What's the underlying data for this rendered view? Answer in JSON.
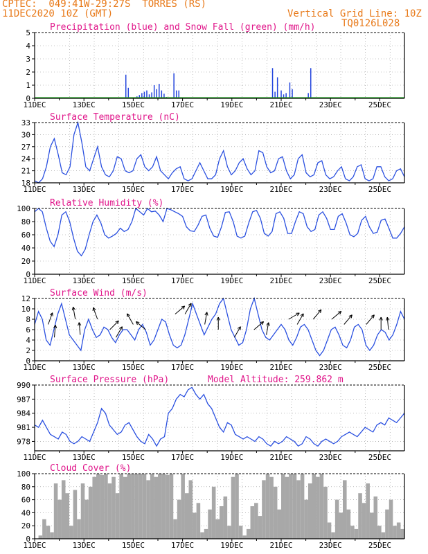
{
  "header": {
    "line1": "CPTEC:  049:41W-29:27S  TORRES (RS)",
    "line2": "11DEC2020 10Z (GMT)",
    "grid_note": "Vertical Grid Line: 10Z",
    "code": "TQ0126L028",
    "model_altitude": "Model Altitude: 259.862 m"
  },
  "colors": {
    "header": "#e87a1a",
    "title": "#e0168a",
    "precip": "#2244dd",
    "snow": "#22aa22",
    "line": "#2a50e0",
    "cloud": "#a8a8a8",
    "wind_arrow": "#000000"
  },
  "x_tick_labels": [
    "11DEC",
    "13DEC",
    "15DEC",
    "17DEC",
    "19DEC",
    "21DEC",
    "23DEC",
    "25DEC"
  ],
  "chart_data": [
    {
      "id": "precip",
      "type": "bar",
      "title": "Precipitation (blue) and Snow Fall (green) (mm/h)",
      "ylim": [
        0,
        5
      ],
      "yticks": [
        "0",
        "1",
        "2",
        "3",
        "4",
        "5"
      ],
      "x_unit": "days since 11DEC 00Z",
      "series": [
        {
          "name": "Precipitation",
          "points": [
            [
              3.7,
              1.8
            ],
            [
              3.8,
              0.8
            ],
            [
              4.15,
              0.15
            ],
            [
              4.25,
              0.25
            ],
            [
              4.35,
              0.4
            ],
            [
              4.45,
              0.5
            ],
            [
              4.55,
              0.6
            ],
            [
              4.65,
              0.3
            ],
            [
              4.75,
              0.45
            ],
            [
              4.85,
              1.0
            ],
            [
              4.95,
              0.7
            ],
            [
              5.05,
              1.1
            ],
            [
              5.15,
              0.6
            ],
            [
              5.25,
              0.35
            ],
            [
              5.35,
              0.1
            ],
            [
              5.65,
              1.9
            ],
            [
              5.75,
              0.6
            ],
            [
              5.85,
              0.6
            ],
            [
              9.65,
              2.3
            ],
            [
              9.75,
              0.5
            ],
            [
              9.85,
              1.6
            ],
            [
              10.0,
              0.6
            ],
            [
              10.1,
              0.3
            ],
            [
              10.2,
              0.4
            ],
            [
              10.35,
              1.2
            ],
            [
              10.45,
              0.7
            ],
            [
              11.1,
              0.4
            ],
            [
              11.2,
              2.3
            ]
          ]
        },
        {
          "name": "Snow Fall",
          "points": []
        }
      ]
    },
    {
      "id": "temperature",
      "type": "line",
      "title": "Surface Temperature (nC)",
      "ylim": [
        18,
        33
      ],
      "yticks": [
        "18",
        "21",
        "24",
        "27",
        "30",
        "33"
      ],
      "y": [
        18.5,
        18,
        19,
        22,
        27,
        29,
        25,
        20.5,
        20,
        22,
        30,
        33,
        28,
        22,
        21,
        24,
        27,
        22,
        20,
        19.5,
        21,
        24.5,
        24,
        21,
        20.5,
        21,
        24,
        25,
        22,
        21,
        22,
        24.5,
        21,
        20,
        19,
        20.5,
        21.5,
        22,
        19,
        18.5,
        19,
        21,
        23,
        21,
        19,
        19,
        20,
        24,
        26,
        22,
        20,
        21,
        23,
        24,
        21.5,
        20,
        21,
        26,
        25.5,
        22,
        20.5,
        21,
        24,
        24.5,
        21,
        19,
        20,
        24,
        25,
        20.5,
        19.5,
        20,
        23,
        23.5,
        20,
        19,
        19.5,
        21,
        22,
        19,
        18.5,
        19.5,
        22,
        22.5,
        19,
        18.5,
        19,
        22,
        22,
        19.5,
        18.5,
        19,
        21,
        21.5,
        19.5
      ]
    },
    {
      "id": "humidity",
      "type": "line",
      "title": "Relative Humidity (%)",
      "ylim": [
        0,
        100
      ],
      "yticks": [
        "0",
        "20",
        "40",
        "60",
        "80",
        "100"
      ],
      "y": [
        95,
        100,
        95,
        70,
        50,
        42,
        60,
        90,
        95,
        80,
        55,
        35,
        28,
        38,
        60,
        80,
        90,
        78,
        60,
        55,
        58,
        62,
        70,
        65,
        68,
        80,
        100,
        95,
        90,
        100,
        95,
        96,
        90,
        80,
        100,
        98,
        95,
        92,
        88,
        72,
        66,
        65,
        75,
        88,
        90,
        70,
        58,
        56,
        72,
        94,
        95,
        80,
        58,
        55,
        58,
        78,
        95,
        97,
        85,
        62,
        58,
        65,
        92,
        95,
        85,
        62,
        62,
        80,
        95,
        92,
        72,
        65,
        68,
        90,
        95,
        85,
        68,
        68,
        88,
        92,
        78,
        60,
        57,
        62,
        82,
        88,
        72,
        62,
        64,
        82,
        84,
        70,
        55,
        55,
        62,
        72
      ]
    },
    {
      "id": "wind",
      "type": "line",
      "title": "Surface Wind (m/s)",
      "ylim": [
        0,
        12
      ],
      "yticks": [
        "0",
        "2",
        "4",
        "6",
        "8",
        "10",
        "12"
      ],
      "y": [
        7,
        9.5,
        8,
        4,
        3,
        6,
        9,
        11,
        8,
        5,
        4,
        3,
        2,
        6,
        8,
        6,
        4.5,
        5,
        6.5,
        6,
        4.5,
        3.5,
        5,
        6,
        6,
        5,
        4,
        6,
        7,
        5.5,
        3,
        4,
        6,
        8,
        7.5,
        5,
        3,
        2.5,
        3,
        5,
        8,
        11,
        9,
        7,
        5,
        6.5,
        8,
        9,
        11,
        12,
        9,
        6,
        4.5,
        3,
        3.5,
        6,
        10,
        12,
        9,
        6,
        4.5,
        4,
        5,
        6,
        7,
        6,
        4,
        3,
        4.5,
        6.5,
        7,
        6,
        4,
        2,
        1,
        2,
        4,
        6,
        6.5,
        5,
        3,
        2.5,
        4,
        6.5,
        7,
        6,
        3,
        2,
        3,
        5,
        6,
        5.5,
        4,
        5,
        7,
        9.5,
        8
      ]
    },
    {
      "id": "pressure",
      "type": "line",
      "title": "Surface Pressure (hPa)",
      "ylim": [
        976,
        990
      ],
      "yticks": [
        "978",
        "981",
        "984",
        "987",
        "990"
      ],
      "y": [
        981.5,
        981,
        982.5,
        981,
        979.5,
        979,
        978.5,
        980,
        979.5,
        978,
        977.5,
        978,
        979,
        978.5,
        978,
        980,
        982,
        985,
        984,
        981.5,
        980.5,
        979.5,
        980,
        981.5,
        982,
        980.5,
        979,
        978,
        977.5,
        979.5,
        978.5,
        977,
        978.5,
        979,
        984,
        985,
        987,
        988,
        987.5,
        989,
        989.5,
        988,
        987,
        988,
        986,
        985,
        983,
        981,
        980,
        982,
        981.5,
        979.5,
        979,
        978.5,
        979,
        978.5,
        978,
        979,
        978.5,
        977.5,
        977,
        978,
        977.5,
        978,
        979,
        978.5,
        978,
        977,
        977.5,
        979,
        978.5,
        977.5,
        977,
        978,
        978.5,
        978,
        977.5,
        978,
        979,
        979.5,
        980,
        979.5,
        979,
        980,
        981,
        980.5,
        980,
        981.5,
        982,
        981.5,
        983,
        982.5,
        982,
        983,
        984
      ]
    },
    {
      "id": "cloud",
      "type": "area",
      "title": "Cloud Cover (%)",
      "ylim": [
        0,
        100
      ],
      "yticks": [
        "0",
        "20",
        "40",
        "60",
        "80",
        "100"
      ],
      "y": [
        0,
        5,
        30,
        20,
        10,
        85,
        60,
        90,
        70,
        20,
        75,
        30,
        85,
        60,
        80,
        95,
        100,
        98,
        100,
        85,
        95,
        70,
        100,
        95,
        100,
        100,
        100,
        100,
        100,
        90,
        100,
        95,
        100,
        100,
        98,
        100,
        30,
        60,
        100,
        70,
        90,
        40,
        55,
        10,
        15,
        45,
        80,
        30,
        50,
        65,
        20,
        95,
        100,
        20,
        5,
        15,
        50,
        55,
        35,
        90,
        100,
        95,
        80,
        45,
        100,
        95,
        100,
        100,
        90,
        100,
        60,
        85,
        100,
        95,
        100,
        80,
        25,
        10,
        60,
        40,
        90,
        45,
        20,
        15,
        70,
        55,
        85,
        40,
        65,
        20,
        10,
        45,
        60,
        20,
        25,
        15
      ]
    }
  ],
  "wind_barbs": [
    [
      0.55,
      7,
      70
    ],
    [
      0.8,
      4.5,
      85
    ],
    [
      1.65,
      8,
      100
    ],
    [
      1.85,
      5,
      95
    ],
    [
      2.55,
      8,
      110
    ],
    [
      3.05,
      6,
      45
    ],
    [
      3.3,
      4.5,
      60
    ],
    [
      4.0,
      7,
      120
    ],
    [
      4.5,
      6,
      140
    ],
    [
      5.7,
      9,
      40
    ],
    [
      6.1,
      9,
      60
    ],
    [
      6.9,
      7,
      80
    ],
    [
      7.45,
      6,
      90
    ],
    [
      8.1,
      4.5,
      60
    ],
    [
      8.9,
      6,
      40
    ],
    [
      9.4,
      5,
      80
    ],
    [
      10.3,
      8,
      30
    ],
    [
      10.65,
      7,
      60
    ],
    [
      11.3,
      8,
      50
    ],
    [
      12.05,
      8,
      40
    ],
    [
      12.55,
      7,
      50
    ],
    [
      13.45,
      7,
      50
    ],
    [
      14.05,
      6,
      90
    ],
    [
      14.35,
      6,
      95
    ]
  ]
}
